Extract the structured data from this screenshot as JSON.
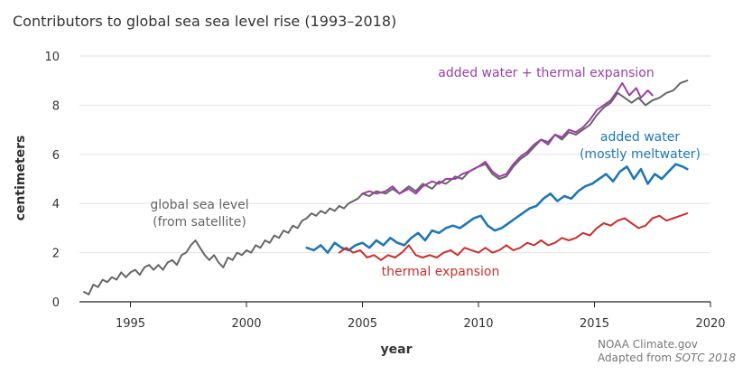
{
  "chart_data": {
    "type": "line",
    "title": "Contributors to global sea sea level rise (1993–2018)",
    "xlabel": "year",
    "ylabel": "centimeters",
    "xlim": [
      1992.8,
      2020
    ],
    "ylim": [
      0,
      10
    ],
    "x_ticks": [
      "1995",
      "2000",
      "2005",
      "2010",
      "2015",
      "2020"
    ],
    "y_ticks": [
      "0",
      "2",
      "4",
      "6",
      "8",
      "10"
    ],
    "grid": "horizontal",
    "legend": "none (direct labels)",
    "series": [
      {
        "name": "global sea level (from satellite)",
        "color": "#666666",
        "points": [
          [
            1993.0,
            0.4
          ],
          [
            1993.2,
            0.3
          ],
          [
            1993.4,
            0.7
          ],
          [
            1993.6,
            0.6
          ],
          [
            1993.8,
            0.9
          ],
          [
            1994.0,
            0.8
          ],
          [
            1994.2,
            1.0
          ],
          [
            1994.4,
            0.9
          ],
          [
            1994.6,
            1.2
          ],
          [
            1994.8,
            1.0
          ],
          [
            1995.0,
            1.2
          ],
          [
            1995.2,
            1.3
          ],
          [
            1995.4,
            1.1
          ],
          [
            1995.6,
            1.4
          ],
          [
            1995.8,
            1.5
          ],
          [
            1996.0,
            1.3
          ],
          [
            1996.2,
            1.5
          ],
          [
            1996.4,
            1.3
          ],
          [
            1996.6,
            1.6
          ],
          [
            1996.8,
            1.7
          ],
          [
            1997.0,
            1.5
          ],
          [
            1997.2,
            1.9
          ],
          [
            1997.4,
            2.0
          ],
          [
            1997.6,
            2.3
          ],
          [
            1997.8,
            2.5
          ],
          [
            1998.0,
            2.2
          ],
          [
            1998.2,
            1.9
          ],
          [
            1998.4,
            1.7
          ],
          [
            1998.6,
            1.9
          ],
          [
            1998.8,
            1.6
          ],
          [
            1999.0,
            1.4
          ],
          [
            1999.2,
            1.8
          ],
          [
            1999.4,
            1.7
          ],
          [
            1999.6,
            2.0
          ],
          [
            1999.8,
            1.9
          ],
          [
            2000.0,
            2.1
          ],
          [
            2000.2,
            2.0
          ],
          [
            2000.4,
            2.3
          ],
          [
            2000.6,
            2.2
          ],
          [
            2000.8,
            2.5
          ],
          [
            2001.0,
            2.4
          ],
          [
            2001.2,
            2.7
          ],
          [
            2001.4,
            2.6
          ],
          [
            2001.6,
            2.9
          ],
          [
            2001.8,
            2.8
          ],
          [
            2002.0,
            3.1
          ],
          [
            2002.2,
            3.0
          ],
          [
            2002.4,
            3.3
          ],
          [
            2002.6,
            3.4
          ],
          [
            2002.8,
            3.6
          ],
          [
            2003.0,
            3.5
          ],
          [
            2003.2,
            3.7
          ],
          [
            2003.4,
            3.6
          ],
          [
            2003.6,
            3.8
          ],
          [
            2003.8,
            3.7
          ],
          [
            2004.0,
            3.9
          ],
          [
            2004.2,
            3.8
          ],
          [
            2004.4,
            4.0
          ],
          [
            2004.6,
            4.1
          ],
          [
            2004.8,
            4.2
          ],
          [
            2005.0,
            4.4
          ],
          [
            2005.3,
            4.3
          ],
          [
            2005.6,
            4.5
          ],
          [
            2006.0,
            4.4
          ],
          [
            2006.3,
            4.6
          ],
          [
            2006.6,
            4.4
          ],
          [
            2007.0,
            4.7
          ],
          [
            2007.3,
            4.5
          ],
          [
            2007.6,
            4.8
          ],
          [
            2008.0,
            4.6
          ],
          [
            2008.3,
            4.9
          ],
          [
            2008.6,
            4.8
          ],
          [
            2009.0,
            5.1
          ],
          [
            2009.3,
            5.0
          ],
          [
            2009.6,
            5.3
          ],
          [
            2010.0,
            5.5
          ],
          [
            2010.3,
            5.6
          ],
          [
            2010.6,
            5.2
          ],
          [
            2010.9,
            5.0
          ],
          [
            2011.2,
            5.1
          ],
          [
            2011.5,
            5.5
          ],
          [
            2011.8,
            5.8
          ],
          [
            2012.1,
            6.0
          ],
          [
            2012.4,
            6.3
          ],
          [
            2012.7,
            6.6
          ],
          [
            2013.0,
            6.5
          ],
          [
            2013.3,
            6.8
          ],
          [
            2013.6,
            6.6
          ],
          [
            2013.9,
            6.9
          ],
          [
            2014.2,
            6.8
          ],
          [
            2014.5,
            7.0
          ],
          [
            2014.8,
            7.2
          ],
          [
            2015.1,
            7.6
          ],
          [
            2015.4,
            7.9
          ],
          [
            2015.7,
            8.1
          ],
          [
            2016.0,
            8.5
          ],
          [
            2016.3,
            8.3
          ],
          [
            2016.6,
            8.1
          ],
          [
            2016.9,
            8.3
          ],
          [
            2017.2,
            8.0
          ],
          [
            2017.5,
            8.2
          ],
          [
            2017.8,
            8.3
          ],
          [
            2018.1,
            8.5
          ],
          [
            2018.4,
            8.6
          ],
          [
            2018.7,
            8.9
          ],
          [
            2019.0,
            9.0
          ]
        ]
      },
      {
        "name": "added water + thermal expansion",
        "color": "#9B3FA6",
        "points": [
          [
            2005.0,
            4.4
          ],
          [
            2005.3,
            4.5
          ],
          [
            2005.6,
            4.4
          ],
          [
            2006.0,
            4.5
          ],
          [
            2006.3,
            4.7
          ],
          [
            2006.6,
            4.4
          ],
          [
            2007.0,
            4.6
          ],
          [
            2007.3,
            4.4
          ],
          [
            2007.6,
            4.7
          ],
          [
            2008.0,
            4.9
          ],
          [
            2008.3,
            4.8
          ],
          [
            2008.6,
            5.0
          ],
          [
            2009.0,
            5.0
          ],
          [
            2009.3,
            5.2
          ],
          [
            2009.6,
            5.3
          ],
          [
            2010.0,
            5.5
          ],
          [
            2010.3,
            5.7
          ],
          [
            2010.6,
            5.3
          ],
          [
            2010.9,
            5.1
          ],
          [
            2011.2,
            5.2
          ],
          [
            2011.5,
            5.6
          ],
          [
            2011.8,
            5.9
          ],
          [
            2012.1,
            6.1
          ],
          [
            2012.4,
            6.4
          ],
          [
            2012.7,
            6.6
          ],
          [
            2013.0,
            6.4
          ],
          [
            2013.3,
            6.8
          ],
          [
            2013.6,
            6.7
          ],
          [
            2013.9,
            7.0
          ],
          [
            2014.2,
            6.9
          ],
          [
            2014.5,
            7.1
          ],
          [
            2014.8,
            7.4
          ],
          [
            2015.1,
            7.8
          ],
          [
            2015.4,
            8.0
          ],
          [
            2015.7,
            8.2
          ],
          [
            2016.0,
            8.6
          ],
          [
            2016.2,
            8.9
          ],
          [
            2016.5,
            8.4
          ],
          [
            2016.8,
            8.7
          ],
          [
            2017.0,
            8.3
          ],
          [
            2017.3,
            8.6
          ],
          [
            2017.5,
            8.4
          ]
        ]
      },
      {
        "name": "added water (mostly meltwater)",
        "color": "#1F78B4",
        "points": [
          [
            2002.6,
            2.2
          ],
          [
            2002.9,
            2.1
          ],
          [
            2003.2,
            2.3
          ],
          [
            2003.5,
            2.0
          ],
          [
            2003.8,
            2.4
          ],
          [
            2004.1,
            2.2
          ],
          [
            2004.4,
            2.1
          ],
          [
            2004.7,
            2.3
          ],
          [
            2005.0,
            2.4
          ],
          [
            2005.3,
            2.2
          ],
          [
            2005.6,
            2.5
          ],
          [
            2005.9,
            2.3
          ],
          [
            2006.2,
            2.6
          ],
          [
            2006.5,
            2.4
          ],
          [
            2006.8,
            2.3
          ],
          [
            2007.1,
            2.6
          ],
          [
            2007.4,
            2.8
          ],
          [
            2007.7,
            2.5
          ],
          [
            2008.0,
            2.9
          ],
          [
            2008.3,
            2.8
          ],
          [
            2008.6,
            3.0
          ],
          [
            2008.9,
            3.1
          ],
          [
            2009.2,
            3.0
          ],
          [
            2009.5,
            3.2
          ],
          [
            2009.8,
            3.4
          ],
          [
            2010.1,
            3.5
          ],
          [
            2010.4,
            3.1
          ],
          [
            2010.7,
            2.9
          ],
          [
            2011.0,
            3.0
          ],
          [
            2011.3,
            3.2
          ],
          [
            2011.6,
            3.4
          ],
          [
            2011.9,
            3.6
          ],
          [
            2012.2,
            3.8
          ],
          [
            2012.5,
            3.9
          ],
          [
            2012.8,
            4.2
          ],
          [
            2013.1,
            4.4
          ],
          [
            2013.4,
            4.1
          ],
          [
            2013.7,
            4.3
          ],
          [
            2014.0,
            4.2
          ],
          [
            2014.3,
            4.5
          ],
          [
            2014.6,
            4.7
          ],
          [
            2014.9,
            4.8
          ],
          [
            2015.2,
            5.0
          ],
          [
            2015.5,
            5.2
          ],
          [
            2015.8,
            4.9
          ],
          [
            2016.1,
            5.3
          ],
          [
            2016.4,
            5.5
          ],
          [
            2016.7,
            5.0
          ],
          [
            2017.0,
            5.4
          ],
          [
            2017.3,
            4.8
          ],
          [
            2017.6,
            5.2
          ],
          [
            2017.9,
            5.0
          ],
          [
            2018.2,
            5.3
          ],
          [
            2018.5,
            5.6
          ],
          [
            2018.8,
            5.5
          ],
          [
            2019.0,
            5.4
          ]
        ]
      },
      {
        "name": "thermal expansion",
        "color": "#C9302C",
        "points": [
          [
            2004.0,
            2.0
          ],
          [
            2004.3,
            2.2
          ],
          [
            2004.6,
            2.0
          ],
          [
            2004.9,
            2.1
          ],
          [
            2005.2,
            1.8
          ],
          [
            2005.5,
            1.9
          ],
          [
            2005.8,
            1.7
          ],
          [
            2006.1,
            1.9
          ],
          [
            2006.4,
            1.8
          ],
          [
            2006.7,
            2.0
          ],
          [
            2007.0,
            2.3
          ],
          [
            2007.3,
            1.9
          ],
          [
            2007.6,
            1.8
          ],
          [
            2007.9,
            1.9
          ],
          [
            2008.2,
            1.8
          ],
          [
            2008.5,
            2.0
          ],
          [
            2008.8,
            2.1
          ],
          [
            2009.1,
            1.9
          ],
          [
            2009.4,
            2.2
          ],
          [
            2009.7,
            2.1
          ],
          [
            2010.0,
            2.0
          ],
          [
            2010.3,
            2.2
          ],
          [
            2010.6,
            2.0
          ],
          [
            2010.9,
            2.1
          ],
          [
            2011.2,
            2.3
          ],
          [
            2011.5,
            2.1
          ],
          [
            2011.8,
            2.2
          ],
          [
            2012.1,
            2.4
          ],
          [
            2012.4,
            2.3
          ],
          [
            2012.7,
            2.5
          ],
          [
            2013.0,
            2.3
          ],
          [
            2013.3,
            2.4
          ],
          [
            2013.6,
            2.6
          ],
          [
            2013.9,
            2.5
          ],
          [
            2014.2,
            2.6
          ],
          [
            2014.5,
            2.8
          ],
          [
            2014.8,
            2.7
          ],
          [
            2015.1,
            3.0
          ],
          [
            2015.4,
            3.2
          ],
          [
            2015.7,
            3.1
          ],
          [
            2016.0,
            3.3
          ],
          [
            2016.3,
            3.4
          ],
          [
            2016.6,
            3.2
          ],
          [
            2016.9,
            3.0
          ],
          [
            2017.2,
            3.1
          ],
          [
            2017.5,
            3.4
          ],
          [
            2017.8,
            3.5
          ],
          [
            2018.1,
            3.3
          ],
          [
            2018.4,
            3.4
          ],
          [
            2018.7,
            3.5
          ],
          [
            2019.0,
            3.6
          ]
        ]
      }
    ],
    "annotations": {
      "global_sea_level": [
        "global sea level",
        "(from satellite)"
      ],
      "added_water_thermal": [
        "added water + thermal expansion"
      ],
      "added_water": [
        "added water",
        "(mostly meltwater)"
      ],
      "thermal": [
        "thermal expansion"
      ]
    }
  },
  "credit": {
    "line1": "NOAA Climate.gov",
    "line2_prefix": "Adapted from ",
    "line2_source": "SOTC 2018"
  },
  "colors": {
    "grid": "#e2e2e2",
    "axis": "#222222",
    "text": "#333333"
  }
}
